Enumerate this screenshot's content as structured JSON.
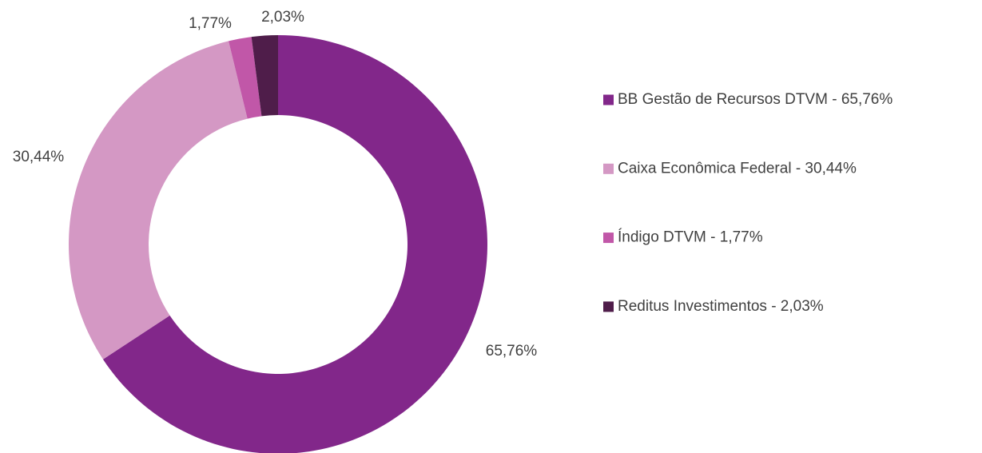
{
  "chart_data": {
    "type": "donut",
    "categories": [
      "BB Gestão de Recursos DTVM - 65,76%",
      "Caixa Econômica Federal - 30,44%",
      "Índigo DTVM - 1,77%",
      "Reditus Investimentos - 2,03%"
    ],
    "values": [
      65.76,
      30.44,
      1.77,
      2.03
    ],
    "value_labels": [
      "65,76%",
      "30,44%",
      "1,77%",
      "2,03%"
    ],
    "colors": [
      "#82278a",
      "#d498c4",
      "#c157a8",
      "#4f1d4a"
    ],
    "legend": "right"
  }
}
